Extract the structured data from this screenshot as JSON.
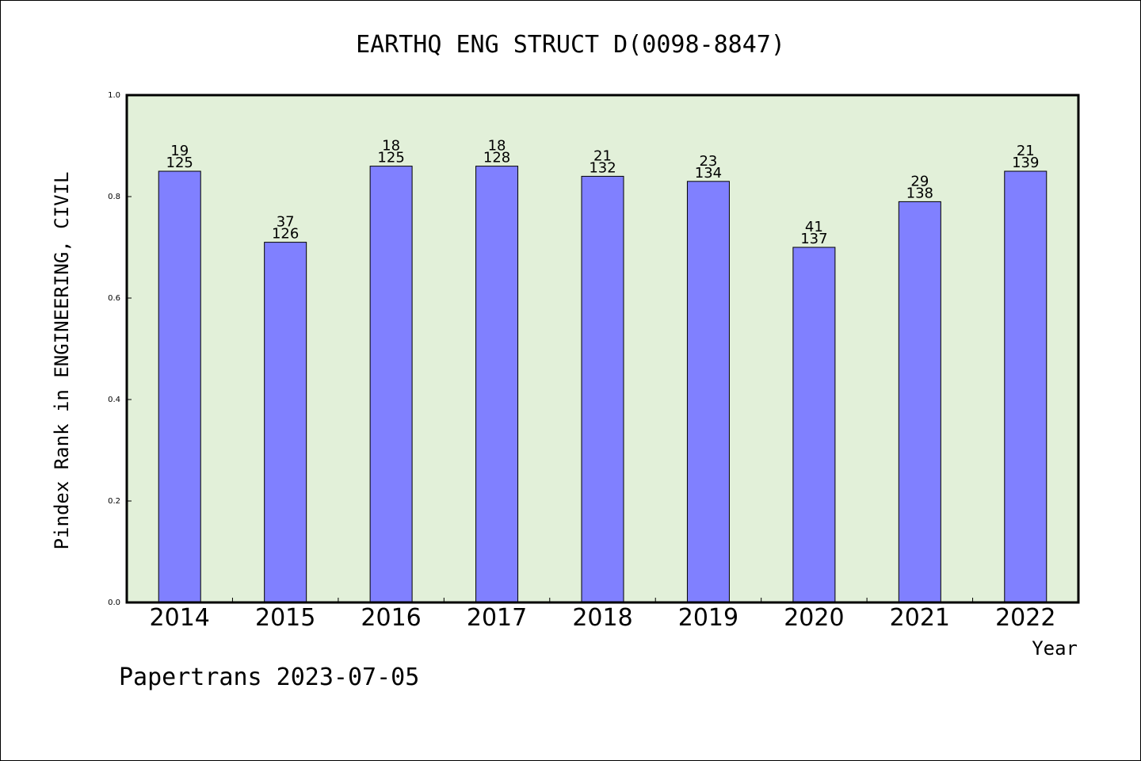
{
  "chart_data": {
    "type": "bar",
    "title": "EARTHQ ENG STRUCT D(0098-8847)",
    "xlabel": "Year",
    "ylabel": "Pindex Rank in ENGINEERING, CIVIL",
    "categories": [
      "2014",
      "2015",
      "2016",
      "2017",
      "2018",
      "2019",
      "2020",
      "2021",
      "2022"
    ],
    "values": [
      0.85,
      0.71,
      0.86,
      0.86,
      0.84,
      0.83,
      0.7,
      0.79,
      0.85
    ],
    "rank_labels": [
      "19",
      "37",
      "18",
      "18",
      "21",
      "23",
      "41",
      "29",
      "21"
    ],
    "total_labels": [
      "125",
      "126",
      "125",
      "128",
      "132",
      "134",
      "137",
      "138",
      "139"
    ],
    "ylim": [
      0,
      1.0
    ],
    "yticks": [
      "0.0",
      "0.2",
      "0.4",
      "0.6",
      "0.8",
      "1.0"
    ],
    "grid": false,
    "colors": {
      "bar": "#8080ff",
      "plot_bg": "#e2f0d9",
      "axis": "#000000"
    }
  },
  "footer": {
    "text": "Papertrans 2023-07-05"
  }
}
